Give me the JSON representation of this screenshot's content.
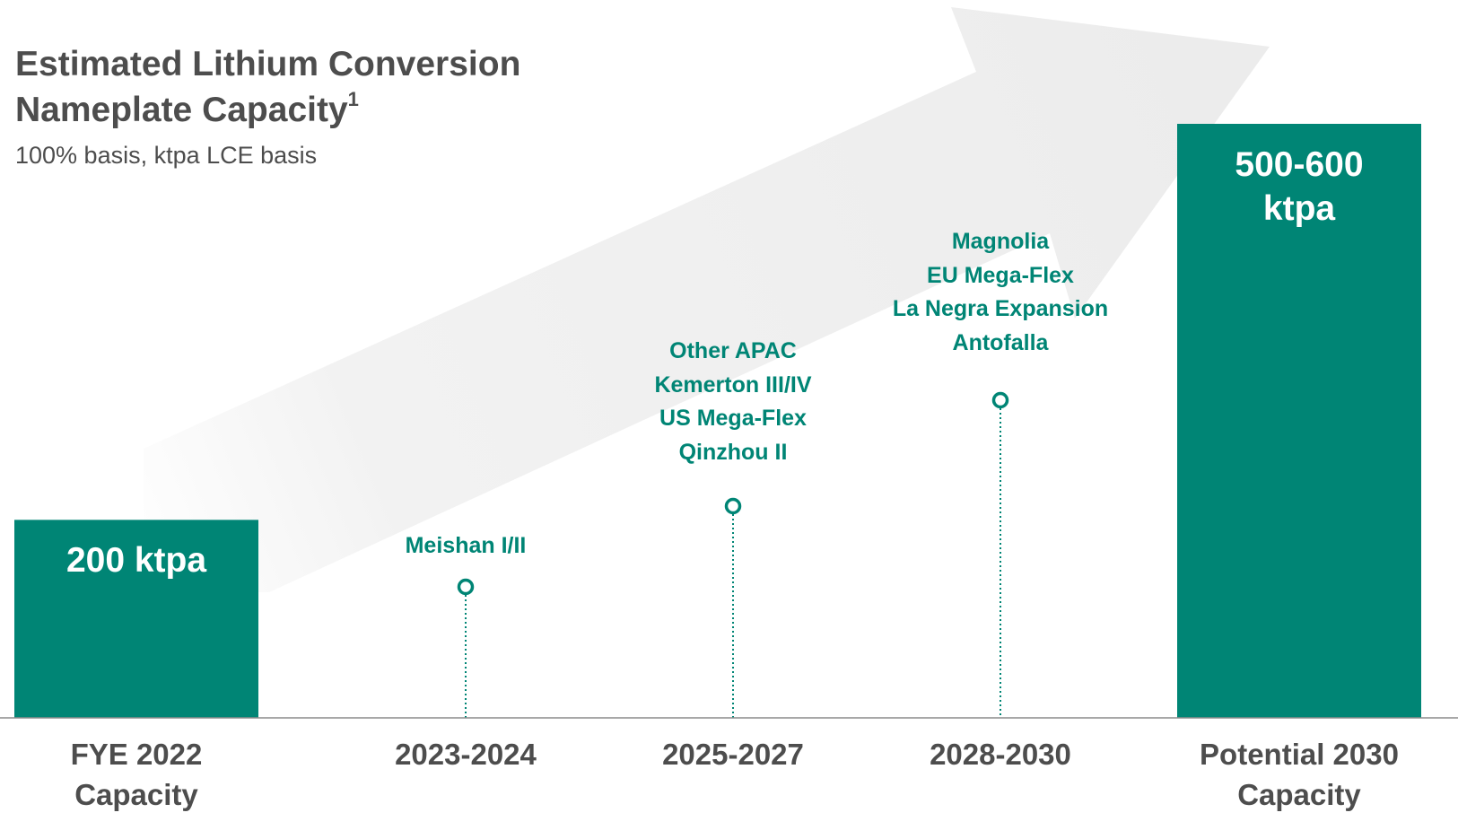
{
  "title_line1": "Estimated Lithium Conversion",
  "title_line2": "Nameplate Capacity",
  "title_footnote": "1",
  "subtitle": "100% basis, ktpa LCE basis",
  "colors": {
    "bar": "#008575",
    "text_dark": "#4d4d4d",
    "label_teal": "#008575",
    "arrow": "#ececec",
    "axis": "#8c8c8c"
  },
  "chart_data": {
    "type": "bar",
    "unit": "ktpa",
    "ylim": [
      0,
      600
    ],
    "grid": false,
    "categories": [
      [
        "FYE 2022",
        "Capacity"
      ],
      [
        "2023-2024"
      ],
      [
        "2025-2027"
      ],
      [
        "2028-2030"
      ],
      [
        "Potential 2030",
        "Capacity"
      ]
    ],
    "bars": [
      {
        "category_index": 0,
        "value": 200,
        "label": [
          "200 ktpa"
        ]
      },
      {
        "category_index": 4,
        "value": 600,
        "value_range": [
          500,
          600
        ],
        "label": [
          "500-600",
          "ktpa"
        ]
      }
    ],
    "milestones": [
      {
        "category_index": 1,
        "projects": [
          "Meishan I/II"
        ]
      },
      {
        "category_index": 2,
        "projects": [
          "Other APAC",
          "Kemerton III/IV",
          "US Mega-Flex",
          "Qinzhou II"
        ]
      },
      {
        "category_index": 3,
        "projects": [
          "Magnolia",
          "EU Mega-Flex",
          "La Negra Expansion",
          "Antofalla"
        ]
      }
    ],
    "annotations": [
      "growth arrow"
    ]
  }
}
